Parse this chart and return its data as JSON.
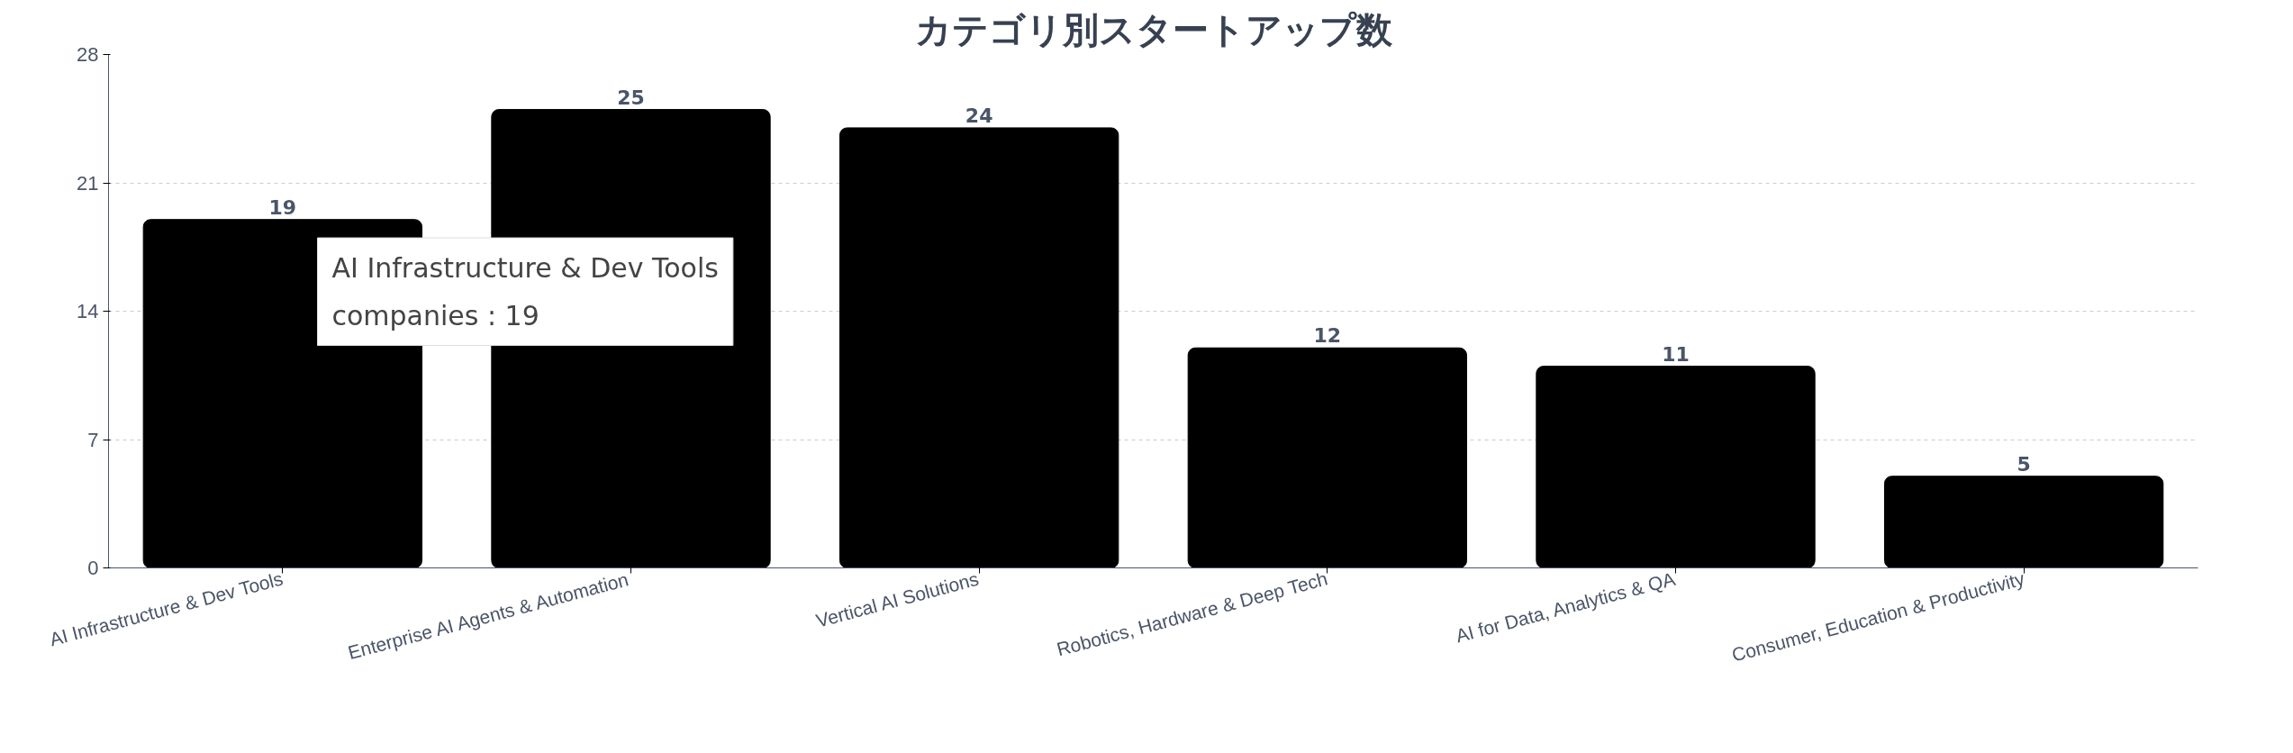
{
  "chart_data": {
    "type": "bar",
    "title": "カテゴリ別スタートアップ数",
    "categories": [
      "AI Infrastructure & Dev Tools",
      "Enterprise AI Agents & Automation",
      "Vertical AI Solutions",
      "Robotics, Hardware & Deep Tech",
      "AI for Data, Analytics & QA",
      "Consumer, Education & Productivity"
    ],
    "values": [
      19,
      25,
      24,
      12,
      11,
      5
    ],
    "color": "#000000",
    "ylim": [
      0,
      28
    ],
    "yticks": [
      0,
      7,
      14,
      21,
      28
    ],
    "grid": "y",
    "data_labels": true,
    "annotations": [
      {
        "text": "AI Infrastructure & Dev Tools\ncompanies : 19",
        "x": "AI Infrastructure & Dev Tools",
        "y": 19
      }
    ]
  }
}
